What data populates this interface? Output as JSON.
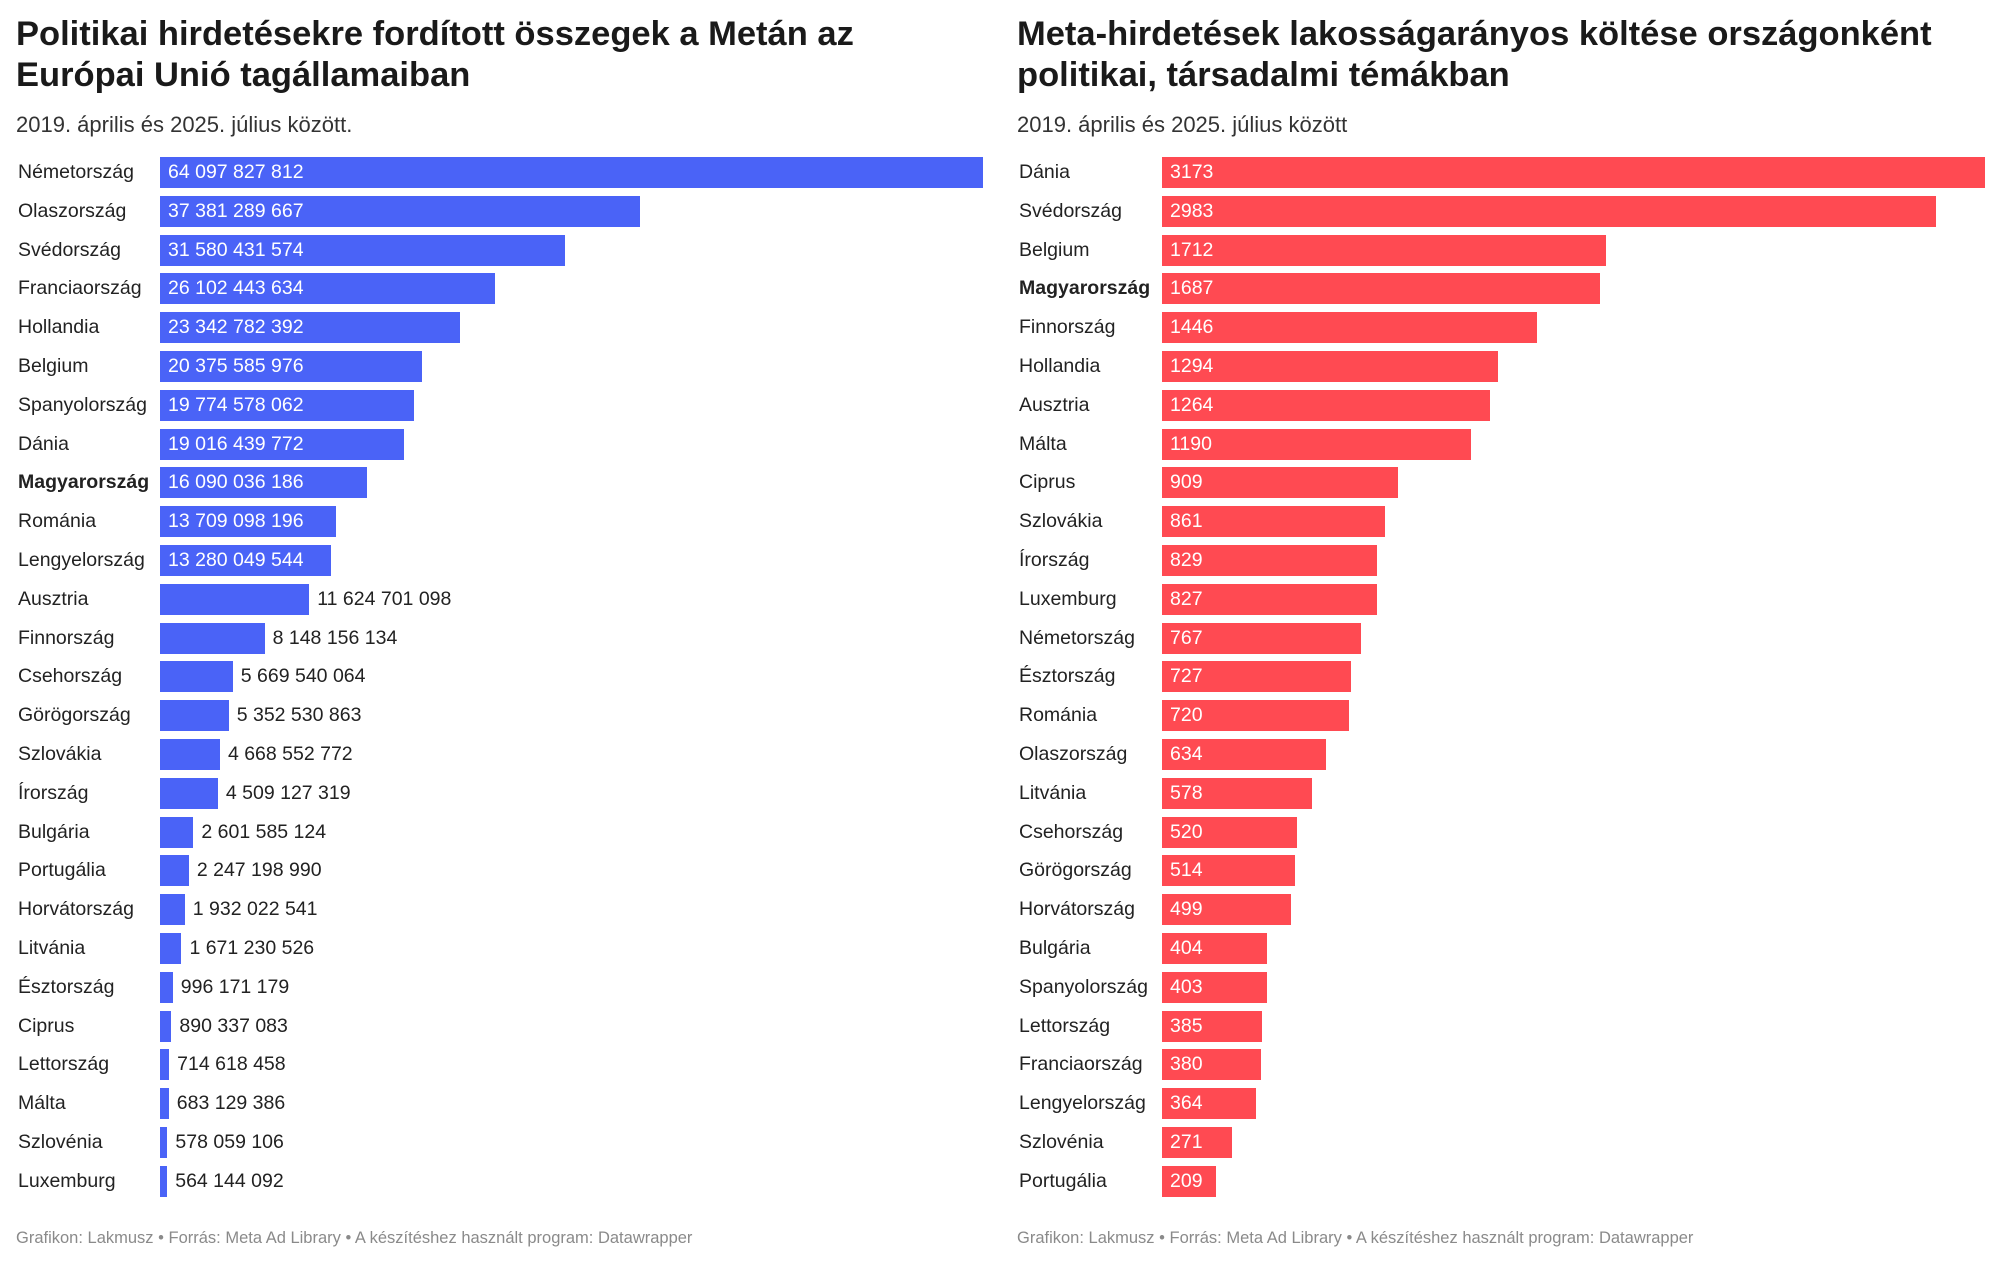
{
  "chart_data": [
    {
      "type": "bar",
      "orientation": "horizontal",
      "title": "Politikai hirdetésekre fordított összegek a Metán az Európai Unió tagállamaiban",
      "subtitle": "2019. április és 2025. július között.",
      "footer": "Grafikon: Lakmusz • Forrás: Meta Ad Library • A készítéshez használt program: Datawrapper",
      "color": "#4a63f7",
      "highlight": "Magyarország",
      "categories": [
        "Németország",
        "Olaszország",
        "Svédország",
        "Franciaország",
        "Hollandia",
        "Belgium",
        "Spanyolország",
        "Dánia",
        "Magyarország",
        "Románia",
        "Lengyelország",
        "Ausztria",
        "Finnország",
        "Csehország",
        "Görögország",
        "Szlovákia",
        "Írország",
        "Bulgária",
        "Portugália",
        "Horvátország",
        "Litvánia",
        "Észtország",
        "Ciprus",
        "Lettország",
        "Málta",
        "Szlovénia",
        "Luxemburg"
      ],
      "values": [
        64097827812,
        37381289667,
        31580431574,
        26102443634,
        23342782392,
        20375585976,
        19774578062,
        19016439772,
        16090036186,
        13709098196,
        13280049544,
        11624701098,
        8148156134,
        5669540064,
        5352530863,
        4668552772,
        4509127319,
        2601585124,
        2247198990,
        1932022541,
        1671230526,
        996171179,
        890337083,
        714618458,
        683129386,
        578059106,
        564144092
      ],
      "value_labels": [
        "64 097 827 812",
        "37 381 289 667",
        "31 580 431 574",
        "26 102 443 634",
        "23 342 782 392",
        "20 375 585 976",
        "19 774 578 062",
        "19 016 439 772",
        "16 090 036 186",
        "13 709 098 196",
        "13 280 049 544",
        "11 624 701 098",
        "8 148 156 134",
        "5 669 540 064",
        "5 352 530 863",
        "4 668 552 772",
        "4 509 127 319",
        "2 601 585 124",
        "2 247 198 990",
        "1 932 022 541",
        "1 671 230 526",
        "996 171 179",
        "890 337 083",
        "714 618 458",
        "683 129 386",
        "578 059 106",
        "564 144 092"
      ]
    },
    {
      "type": "bar",
      "orientation": "horizontal",
      "title": "Meta-hirdetések lakosságarányos költése országonként politikai, társadalmi témákban",
      "subtitle": "2019. április és 2025. július között",
      "footer": "Grafikon: Lakmusz • Forrás: Meta Ad Library • A készítéshez használt program: Datawrapper",
      "color": "#ff4a52",
      "highlight": "Magyarország",
      "categories": [
        "Dánia",
        "Svédország",
        "Belgium",
        "Magyarország",
        "Finnország",
        "Hollandia",
        "Ausztria",
        "Málta",
        "Ciprus",
        "Szlovákia",
        "Írország",
        "Luxemburg",
        "Németország",
        "Észtország",
        "Románia",
        "Olaszország",
        "Litvánia",
        "Csehország",
        "Görögország",
        "Horvátország",
        "Bulgária",
        "Spanyolország",
        "Lettország",
        "Franciaország",
        "Lengyelország",
        "Szlovénia",
        "Portugália"
      ],
      "values": [
        3173,
        2983,
        1712,
        1687,
        1446,
        1294,
        1264,
        1190,
        909,
        861,
        829,
        827,
        767,
        727,
        720,
        634,
        578,
        520,
        514,
        499,
        404,
        403,
        385,
        380,
        364,
        271,
        209
      ],
      "value_labels": [
        "3173",
        "2983",
        "1712",
        "1687",
        "1446",
        "1294",
        "1264",
        "1190",
        "909",
        "861",
        "829",
        "827",
        "767",
        "727",
        "720",
        "634",
        "578",
        "520",
        "514",
        "499",
        "404",
        "403",
        "385",
        "380",
        "364",
        "271",
        "209"
      ]
    }
  ]
}
